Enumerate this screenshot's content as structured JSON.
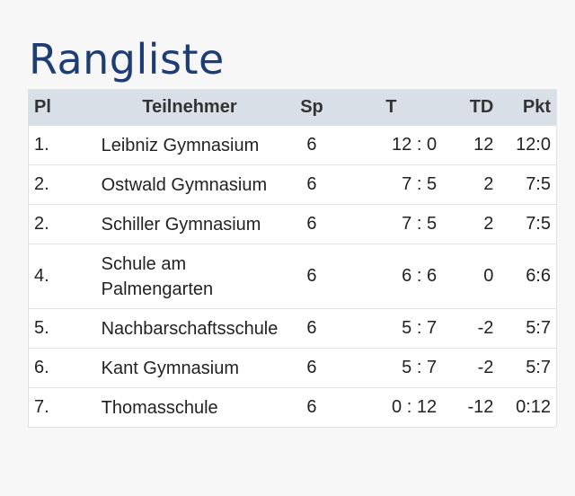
{
  "title": "Rangliste",
  "headers": {
    "pl": "Pl",
    "name": "Teilnehmer",
    "sp": "Sp",
    "t": "T",
    "td": "TD",
    "pkt": "Pkt"
  },
  "rows": [
    {
      "pl": "1.",
      "name": "Leibniz Gymnasium",
      "sp": "6",
      "t": "12 : 0",
      "td": "12",
      "pkt": "12:0"
    },
    {
      "pl": "2.",
      "name": "Ostwald Gymnasium",
      "sp": "6",
      "t": "7 : 5",
      "td": "2",
      "pkt": "7:5"
    },
    {
      "pl": "2.",
      "name": "Schiller Gymnasium",
      "sp": "6",
      "t": "7 : 5",
      "td": "2",
      "pkt": "7:5"
    },
    {
      "pl": "4.",
      "name_line1": "Schule am",
      "name_line2": "Palmengarten",
      "sp": "6",
      "t": "6 : 6",
      "td": "0",
      "pkt": "6:6"
    },
    {
      "pl": "5.",
      "name": "Nachbarschaftsschule",
      "sp": "6",
      "t": "5 : 7",
      "td": "-2",
      "pkt": "5:7"
    },
    {
      "pl": "6.",
      "name": "Kant Gymnasium",
      "sp": "6",
      "t": "5 : 7",
      "td": "-2",
      "pkt": "5:7"
    },
    {
      "pl": "7.",
      "name": "Thomasschule",
      "sp": "6",
      "t": "0 : 12",
      "td": "-12",
      "pkt": "0:12"
    }
  ]
}
